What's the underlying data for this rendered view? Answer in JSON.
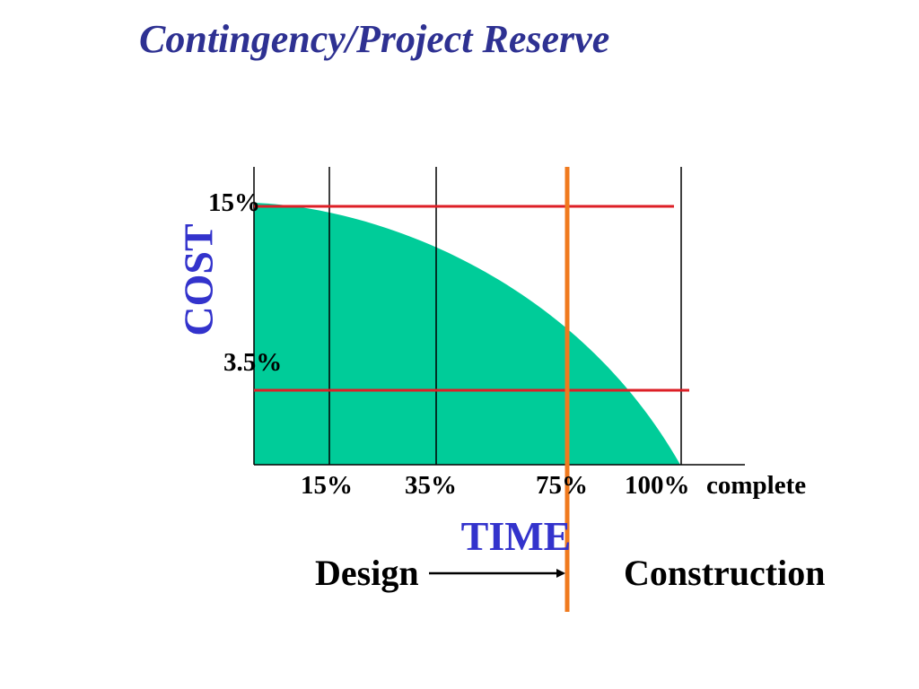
{
  "title": "Contingency/Project Reserve",
  "colors": {
    "title": "#2e3192",
    "axis_label": "#3333cc",
    "fill": "#00cc99",
    "reserve_line": "#dd1f26",
    "current_line": "#f07a1e",
    "grid": "#000000"
  },
  "y_axis": {
    "label": "COST",
    "ticks": [
      "15%",
      "3.5%"
    ]
  },
  "x_axis": {
    "label": "TIME",
    "ticks": [
      "15%",
      "35%",
      "75%",
      "100%"
    ],
    "suffix": "complete"
  },
  "phases": {
    "design": "Design",
    "construction": "Construction"
  }
}
